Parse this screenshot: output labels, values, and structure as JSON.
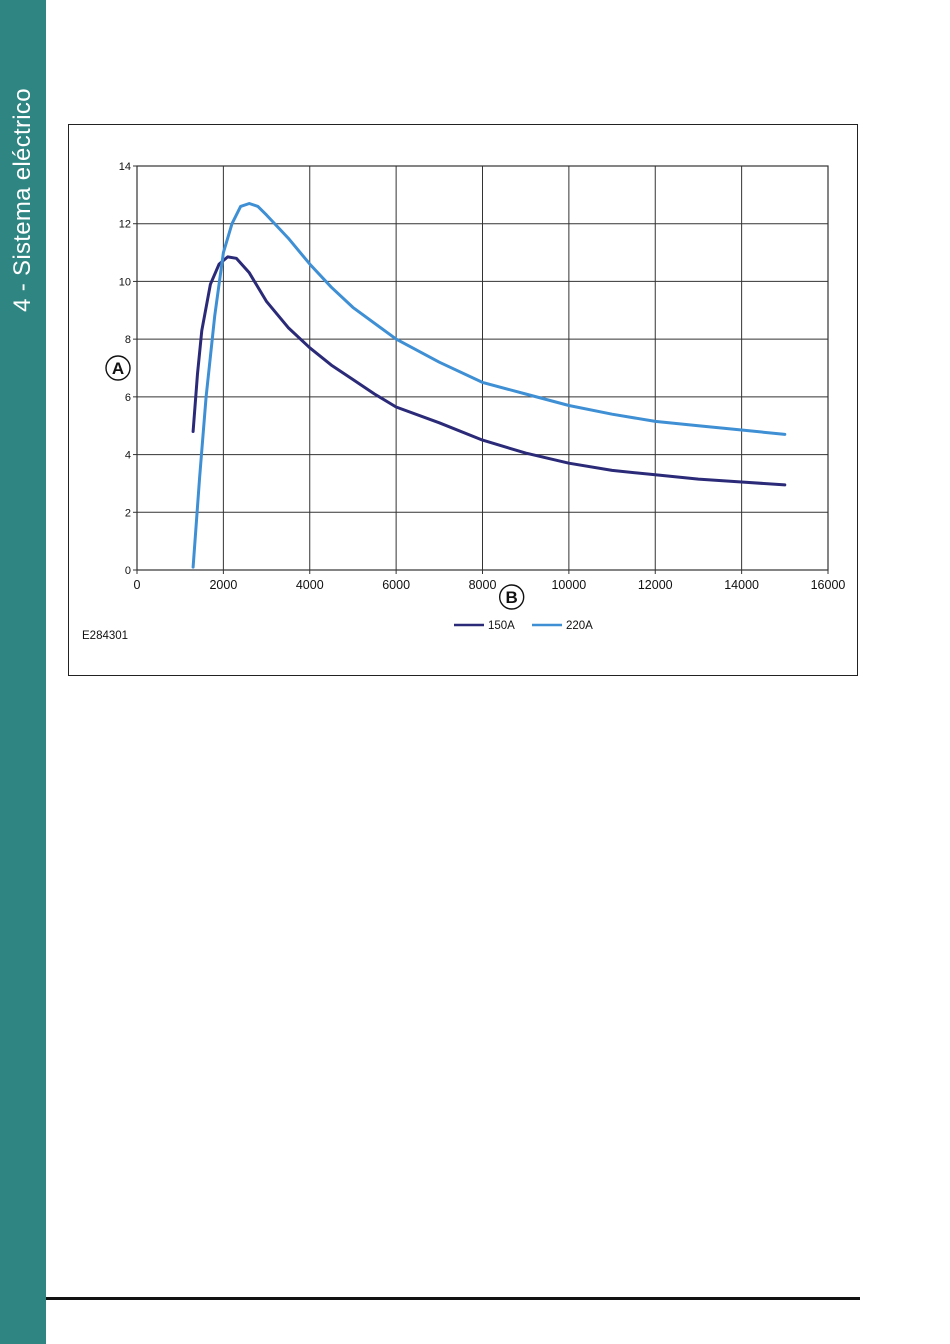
{
  "section": {
    "title": "4 - Sistema eléctrico"
  },
  "figure": {
    "code": "E284301"
  },
  "chart_data": {
    "type": "line",
    "title": "",
    "xlabel": "B",
    "ylabel": "A",
    "xlim": [
      0,
      16000
    ],
    "ylim": [
      0,
      14
    ],
    "x_ticks": [
      0,
      2000,
      4000,
      6000,
      8000,
      10000,
      12000,
      14000,
      16000
    ],
    "y_ticks": [
      0,
      2,
      4,
      6,
      8,
      10,
      12,
      14
    ],
    "grid": true,
    "legend_position": "bottom-center",
    "series": [
      {
        "name": "150A",
        "color": "#2b2a78",
        "points": [
          [
            1300,
            4.8
          ],
          [
            1400,
            6.8
          ],
          [
            1500,
            8.3
          ],
          [
            1700,
            9.9
          ],
          [
            1900,
            10.6
          ],
          [
            2100,
            10.85
          ],
          [
            2300,
            10.8
          ],
          [
            2600,
            10.3
          ],
          [
            3000,
            9.3
          ],
          [
            3500,
            8.4
          ],
          [
            4000,
            7.7
          ],
          [
            4500,
            7.1
          ],
          [
            5000,
            6.6
          ],
          [
            5500,
            6.1
          ],
          [
            6000,
            5.65
          ],
          [
            7000,
            5.1
          ],
          [
            8000,
            4.5
          ],
          [
            9000,
            4.05
          ],
          [
            10000,
            3.7
          ],
          [
            11000,
            3.45
          ],
          [
            12000,
            3.3
          ],
          [
            13000,
            3.15
          ],
          [
            14000,
            3.05
          ],
          [
            15000,
            2.95
          ]
        ]
      },
      {
        "name": "220A",
        "color": "#3f8fd4",
        "points": [
          [
            1300,
            0.1
          ],
          [
            1450,
            3.2
          ],
          [
            1600,
            6.0
          ],
          [
            1800,
            8.8
          ],
          [
            2000,
            11.0
          ],
          [
            2200,
            12.0
          ],
          [
            2400,
            12.6
          ],
          [
            2600,
            12.7
          ],
          [
            2800,
            12.6
          ],
          [
            3000,
            12.3
          ],
          [
            3500,
            11.5
          ],
          [
            4000,
            10.6
          ],
          [
            4500,
            9.8
          ],
          [
            5000,
            9.1
          ],
          [
            6000,
            8.0
          ],
          [
            7000,
            7.2
          ],
          [
            8000,
            6.5
          ],
          [
            9000,
            6.1
          ],
          [
            10000,
            5.7
          ],
          [
            11000,
            5.4
          ],
          [
            12000,
            5.15
          ],
          [
            13000,
            5.0
          ],
          [
            14000,
            4.85
          ],
          [
            15000,
            4.7
          ]
        ]
      }
    ]
  }
}
